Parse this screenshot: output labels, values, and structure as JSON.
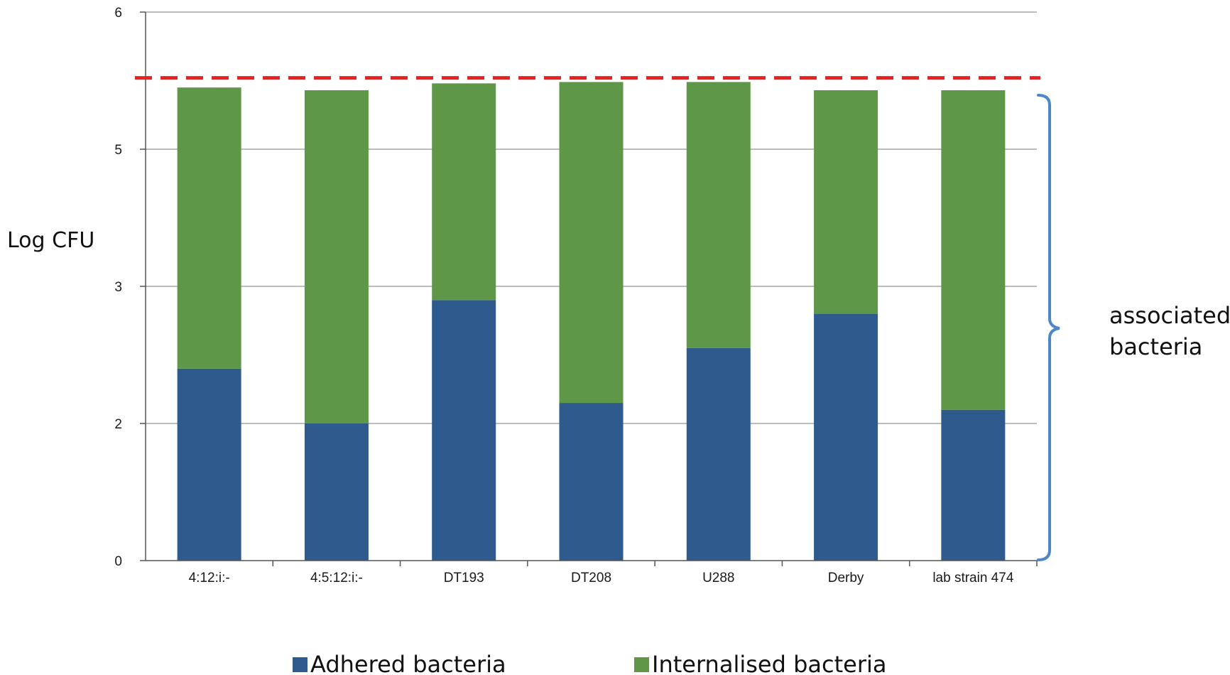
{
  "chart_data": {
    "type": "bar",
    "stacked": true,
    "ylabel": "Log CFU",
    "y_ticks": [
      "0",
      "2",
      "3",
      "5",
      "6"
    ],
    "categories": [
      "4:12:i:-",
      "4:5:12:i:-",
      "DT193",
      "DT208",
      "U288",
      "Derby",
      "lab strain 474"
    ],
    "series": [
      {
        "name": "Adhered bacteria",
        "color": "#2e5a8e",
        "values": [
          2.4,
          2.0,
          2.9,
          2.15,
          2.55,
          2.8,
          2.1
        ]
      },
      {
        "name": "Internalised bacteria",
        "color": "#5f9749",
        "values": [
          3.05,
          3.43,
          2.58,
          3.34,
          2.94,
          2.63,
          3.33
        ]
      }
    ],
    "reference_line": {
      "value": 5.52,
      "color": "#e8231f",
      "style": "dashed"
    },
    "annotation": {
      "lines": [
        "associated",
        "bacteria"
      ],
      "bracket_color": "#4f86c6"
    },
    "grid": true,
    "legend_position": "bottom"
  }
}
